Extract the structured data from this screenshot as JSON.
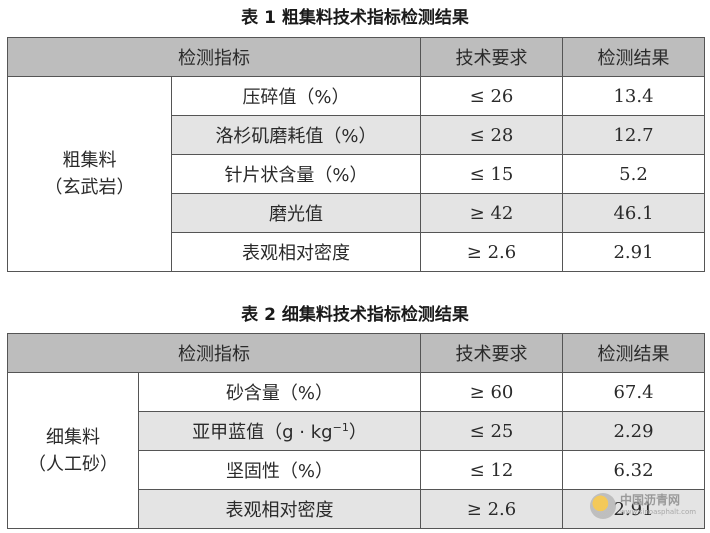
{
  "table1": {
    "caption": "表 1  粗集料技术指标检测结果",
    "headers": [
      "检测指标",
      "技术要求",
      "检测结果"
    ],
    "group_label": [
      "粗集料",
      "（玄武岩）"
    ],
    "rows": [
      {
        "name": "压碎值（%）",
        "req": "≤ 26",
        "result": "13.4"
      },
      {
        "name": "洛杉矶磨耗值（%）",
        "req": "≤ 28",
        "result": "12.7"
      },
      {
        "name": "针片状含量（%）",
        "req": "≤ 15",
        "result": "5.2"
      },
      {
        "name": "磨光值",
        "req": "≥ 42",
        "result": "46.1"
      },
      {
        "name": "表观相对密度",
        "req": "≥ 2.6",
        "result": "2.91"
      }
    ]
  },
  "table2": {
    "caption": "表 2  细集料技术指标检测结果",
    "headers": [
      "检测指标",
      "技术要求",
      "检测结果"
    ],
    "group_label": [
      "细集料",
      "（人工砂）"
    ],
    "rows": [
      {
        "name": "砂含量（%）",
        "req": "≥ 60",
        "result": "67.4"
      },
      {
        "name_prefix": "亚甲蓝值（g · kg",
        "name_sup": "−1",
        "name_suffix": "）",
        "req": "≤ 25",
        "result": "2.29"
      },
      {
        "name": "坚固性（%）",
        "req": "≤ 12",
        "result": "6.32"
      },
      {
        "name": "表观相对密度",
        "req": "≥ 2.6",
        "result": "2.91"
      }
    ]
  },
  "watermark": {
    "text": "中国沥青网",
    "url": "www.sinoasphalt.com"
  }
}
